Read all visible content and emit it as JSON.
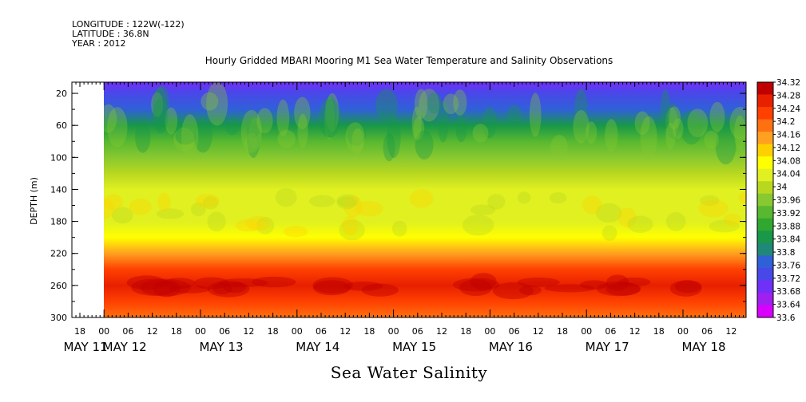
{
  "header": {
    "longitude": "LONGITUDE : 122W(-122)",
    "latitude": "LATITUDE : 36.8N",
    "year": "YEAR : 2012"
  },
  "chart_data": {
    "type": "heatmap",
    "title": "Hourly Gridded MBARI Mooring M1 Sea Water Temperature and Salinity Observations",
    "main_label": "Sea Water Salinity",
    "ylabel": "DEPTH (m)",
    "y_inverted": true,
    "ylim": [
      300,
      6
    ],
    "y_ticks": [
      20,
      60,
      100,
      140,
      180,
      220,
      260,
      300
    ],
    "x_time_ticks": [
      "18",
      "00",
      "06",
      "12",
      "18",
      "00",
      "06",
      "12",
      "18",
      "00",
      "06",
      "12",
      "18",
      "00",
      "06",
      "12",
      "18",
      "00",
      "06",
      "12",
      "18",
      "00",
      "06",
      "12",
      "18",
      "00",
      "06",
      "12"
    ],
    "x_date_labels": [
      "MAY 11",
      "MAY 12",
      "MAY 13",
      "MAY 14",
      "MAY 15",
      "MAY 16",
      "MAY 17",
      "MAY 18"
    ],
    "xlim": [
      "2012-05-10 12:00",
      "2012-05-18 18:00"
    ],
    "data_start": "2012-05-11 00:00",
    "colorbar_levels": [
      33.6,
      33.64,
      33.68,
      33.72,
      33.76,
      33.8,
      33.84,
      33.88,
      33.92,
      33.96,
      34,
      34.04,
      34.08,
      34.12,
      34.16,
      34.2,
      34.24,
      34.28,
      34.32
    ],
    "colorbar_labels": [
      "34.32",
      "34.28",
      "34.24",
      "34.2",
      "34.16",
      "34.12",
      "34.08",
      "34.04",
      "34",
      "33.96",
      "33.92",
      "33.88",
      "33.84",
      "33.8",
      "33.76",
      "33.72",
      "33.68",
      "33.64",
      "33.6"
    ],
    "colorbar_colors": [
      "#d800ff",
      "#a020f0",
      "#7030f8",
      "#4848e8",
      "#3060d8",
      "#208878",
      "#189848",
      "#30a830",
      "#58b830",
      "#88c830",
      "#b8d820",
      "#e0f020",
      "#ffff00",
      "#ffd000",
      "#ffa020",
      "#ff7010",
      "#ff4000",
      "#e82000",
      "#c00000"
    ],
    "depth_profile": [
      {
        "depth": 6,
        "salinity": 33.69
      },
      {
        "depth": 20,
        "salinity": 33.72
      },
      {
        "depth": 40,
        "salinity": 33.79
      },
      {
        "depth": 60,
        "salinity": 33.86
      },
      {
        "depth": 80,
        "salinity": 33.92
      },
      {
        "depth": 100,
        "salinity": 33.97
      },
      {
        "depth": 120,
        "salinity": 34.02
      },
      {
        "depth": 140,
        "salinity": 34.06
      },
      {
        "depth": 160,
        "salinity": 34.07
      },
      {
        "depth": 180,
        "salinity": 34.06
      },
      {
        "depth": 200,
        "salinity": 34.08
      },
      {
        "depth": 220,
        "salinity": 34.18
      },
      {
        "depth": 240,
        "salinity": 34.26
      },
      {
        "depth": 260,
        "salinity": 34.29
      },
      {
        "depth": 280,
        "salinity": 34.25
      },
      {
        "depth": 300,
        "salinity": 34.21
      }
    ]
  }
}
